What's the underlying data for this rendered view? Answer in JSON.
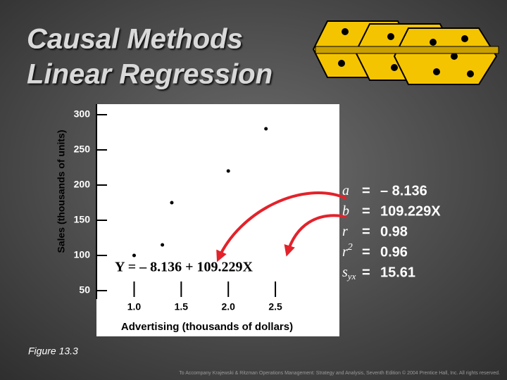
{
  "slide": {
    "title_lines": [
      "Causal Methods",
      "Linear Regression"
    ],
    "equation": "Y = – 8.136 + 109.229X",
    "stats": [
      {
        "symbol": "a",
        "sign": "=",
        "value": "– 8.136"
      },
      {
        "symbol": "b",
        "sign": "=",
        "value": "109.229X"
      },
      {
        "symbol": "r",
        "sign": "=",
        "value": "0.98"
      },
      {
        "symbol": "r",
        "sup": "2",
        "sign": "=",
        "value": "0.96"
      },
      {
        "symbol": "s",
        "sub": "yx",
        "sign": "=",
        "value": "15.61"
      }
    ],
    "figure_caption": "Figure 13.3",
    "footer": "To Accompany Krajewski & Ritzman Operations Management: Strategy and Analysis, Seventh Edition © 2004 Prentice Hall, Inc. All rights reserved."
  },
  "chart_data": {
    "type": "scatter",
    "x_label": "Advertising (thousands of dollars)",
    "y_label": "Sales (thousands of units)",
    "x": [
      1.0,
      1.3,
      1.4,
      2.0,
      2.4
    ],
    "values": [
      100,
      115,
      175,
      220,
      280
    ],
    "color": "#000000",
    "xlim": [
      0.6,
      3.18
    ],
    "ylim": [
      43,
      315
    ],
    "xticks": [
      {
        "value": 1,
        "label": "1.0"
      },
      1.5,
      {
        "value": 2,
        "label": "2.0"
      },
      2.5
    ],
    "yticks": [
      50,
      100,
      150,
      200,
      250,
      300
    ]
  }
}
